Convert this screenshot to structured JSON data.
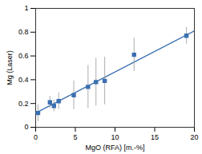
{
  "chart_data": {
    "type": "scatter",
    "x_label": "MgO (RFA) [m.-%]",
    "y_label": "Mg (Laser)",
    "x": [
      0.3,
      1.8,
      2.3,
      2.9,
      4.8,
      6.6,
      7.6,
      8.7,
      12.4,
      19.0
    ],
    "values": [
      0.12,
      0.21,
      0.18,
      0.22,
      0.27,
      0.34,
      0.38,
      0.39,
      0.61,
      0.77
    ],
    "errors": [
      0.07,
      0.05,
      0.05,
      0.07,
      0.12,
      0.18,
      0.2,
      0.2,
      0.14,
      0.07
    ],
    "color": "#3a6fb0",
    "marker": "square",
    "trend": {
      "type": "line",
      "x": [
        0,
        20
      ],
      "values": [
        0.12,
        0.81
      ],
      "color": "#3a6fb0",
      "line_style": "solid"
    },
    "xlim": [
      0,
      20
    ],
    "xticks": [
      0,
      5,
      10,
      15,
      20
    ],
    "ylim": [
      0,
      1
    ],
    "yticks": [
      0,
      0.2,
      0.4,
      0.6,
      0.8,
      1
    ],
    "grid": false
  }
}
